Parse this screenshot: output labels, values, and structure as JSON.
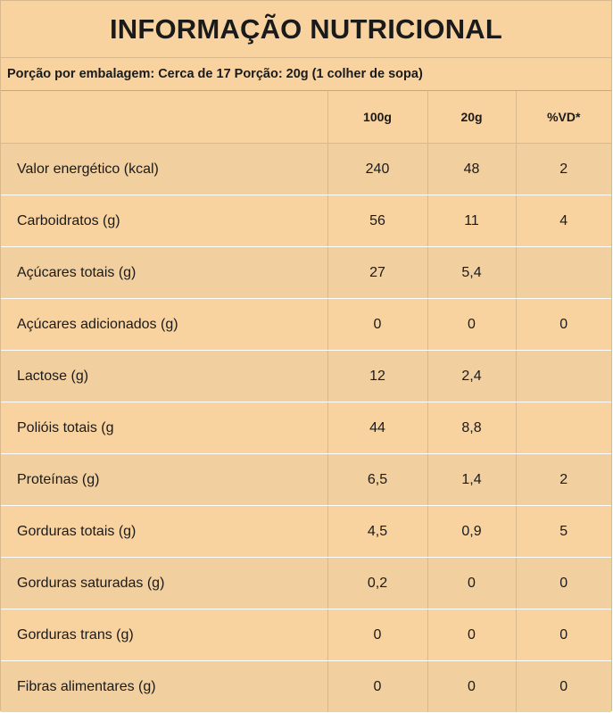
{
  "title": "INFORMAÇÃO NUTRICIONAL",
  "portion": "Porção por embalagem: Cerca de 17 Porção: 20g (1 colher de sopa)",
  "columns": [
    "",
    "100g",
    "20g",
    "%VD*"
  ],
  "rows": [
    {
      "name": "Valor energético (kcal)",
      "v100": "240",
      "v20": "48",
      "vd": "2"
    },
    {
      "name": "Carboidratos (g)",
      "v100": "56",
      "v20": "11",
      "vd": "4"
    },
    {
      "name": "Açúcares totais (g)",
      "v100": "27",
      "v20": "5,4",
      "vd": ""
    },
    {
      "name": "Açúcares adicionados (g)",
      "v100": "0",
      "v20": "0",
      "vd": "0"
    },
    {
      "name": "Lactose (g)",
      "v100": "12",
      "v20": "2,4",
      "vd": ""
    },
    {
      "name": "Polióis totais (g",
      "v100": "44",
      "v20": "8,8",
      "vd": ""
    },
    {
      "name": "Proteínas (g)",
      "v100": "6,5",
      "v20": "1,4",
      "vd": "2"
    },
    {
      "name": "Gorduras totais (g)",
      "v100": "4,5",
      "v20": "0,9",
      "vd": "5"
    },
    {
      "name": "Gorduras saturadas (g)",
      "v100": "0,2",
      "v20": "0",
      "vd": "0"
    },
    {
      "name": "Gorduras trans (g)",
      "v100": "0",
      "v20": "0",
      "vd": "0"
    },
    {
      "name": "Fibras alimentares (g)",
      "v100": "0",
      "v20": "0",
      "vd": "0"
    }
  ]
}
